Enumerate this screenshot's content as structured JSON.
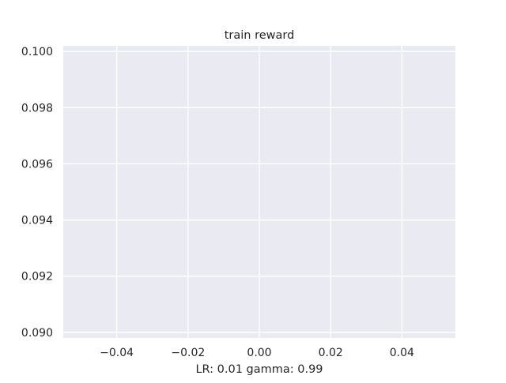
{
  "chart_data": {
    "type": "line",
    "title": "train reward",
    "xlabel": "LR: 0.01 gamma: 0.99",
    "ylabel": "",
    "xlim": [
      -0.055,
      0.055
    ],
    "ylim": [
      0.0898,
      0.1002
    ],
    "xticks": [
      -0.04,
      -0.02,
      0.0,
      0.02,
      0.04
    ],
    "xtick_labels": [
      "−0.04",
      "−0.02",
      "0.00",
      "0.02",
      "0.04"
    ],
    "yticks": [
      0.09,
      0.092,
      0.094,
      0.096,
      0.098,
      0.1
    ],
    "ytick_labels": [
      "0.090",
      "0.092",
      "0.094",
      "0.096",
      "0.098",
      "0.100"
    ],
    "grid": true,
    "series": [],
    "colors": {
      "plot_background": "#eaeaf2",
      "grid": "#ffffff",
      "text": "#262626"
    }
  }
}
